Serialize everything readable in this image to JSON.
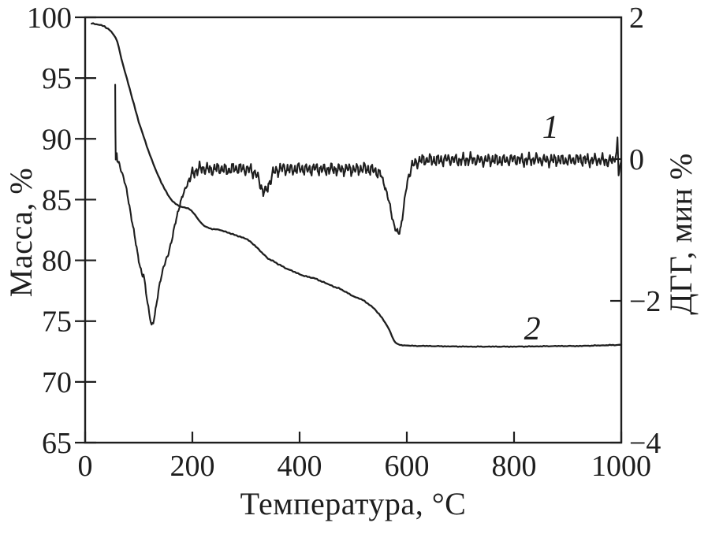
{
  "chart_data": {
    "type": "line",
    "line_color": "#1e1e1e",
    "background_color": "#ffffff",
    "grid": false,
    "x_axis": {
      "label": "Температура, °C",
      "min": 0,
      "max": 1000,
      "ticks": [
        0,
        200,
        400,
        600,
        800,
        1000
      ]
    },
    "y_axis_left": {
      "label": "Масса, %",
      "min": 65,
      "max": 100,
      "ticks": [
        100,
        95,
        90,
        85,
        80,
        75,
        70,
        65
      ]
    },
    "y_axis_right": {
      "label": "ДГГ, мин %",
      "min": -4,
      "max": 2,
      "ticks": [
        2,
        0,
        -2,
        -4
      ]
    },
    "series": [
      {
        "id": "tg-curve",
        "name": "2",
        "axis": "left",
        "description": "Mass loss (TG) curve, %",
        "width": 2.3,
        "noise": {
          "step": 3,
          "segments": [
            [
              12,
              560,
              0.05
            ],
            [
              560,
              1000,
              0.035
            ]
          ]
        },
        "anchors": [
          [
            12,
            99.5
          ],
          [
            24,
            99.42
          ],
          [
            36,
            99.25
          ],
          [
            46,
            98.95
          ],
          [
            54,
            98.55
          ],
          [
            60,
            98.0
          ],
          [
            65,
            97.1
          ],
          [
            70,
            96.2
          ],
          [
            74,
            95.55
          ],
          [
            78,
            94.95
          ],
          [
            83,
            94.15
          ],
          [
            88,
            93.3
          ],
          [
            94,
            92.35
          ],
          [
            100,
            91.4
          ],
          [
            106,
            90.6
          ],
          [
            112,
            89.8
          ],
          [
            118,
            89.0
          ],
          [
            124,
            88.3
          ],
          [
            130,
            87.65
          ],
          [
            136,
            87.0
          ],
          [
            142,
            86.4
          ],
          [
            148,
            85.9
          ],
          [
            154,
            85.4
          ],
          [
            160,
            85.05
          ],
          [
            166,
            84.75
          ],
          [
            172,
            84.55
          ],
          [
            178,
            84.42
          ],
          [
            185,
            84.35
          ],
          [
            192,
            84.28
          ],
          [
            198,
            84.1
          ],
          [
            205,
            83.75
          ],
          [
            212,
            83.3
          ],
          [
            219,
            82.95
          ],
          [
            226,
            82.75
          ],
          [
            234,
            82.62
          ],
          [
            243,
            82.55
          ],
          [
            252,
            82.5
          ],
          [
            262,
            82.35
          ],
          [
            272,
            82.2
          ],
          [
            282,
            82.05
          ],
          [
            292,
            81.9
          ],
          [
            300,
            81.8
          ],
          [
            308,
            81.55
          ],
          [
            316,
            81.25
          ],
          [
            324,
            80.9
          ],
          [
            332,
            80.55
          ],
          [
            341,
            80.15
          ],
          [
            350,
            79.95
          ],
          [
            360,
            79.7
          ],
          [
            370,
            79.45
          ],
          [
            385,
            79.15
          ],
          [
            400,
            78.85
          ],
          [
            415,
            78.65
          ],
          [
            429,
            78.5
          ],
          [
            445,
            78.2
          ],
          [
            460,
            77.9
          ],
          [
            473,
            77.7
          ],
          [
            490,
            77.3
          ],
          [
            505,
            76.95
          ],
          [
            518,
            76.75
          ],
          [
            530,
            76.35
          ],
          [
            540,
            76.0
          ],
          [
            548,
            75.6
          ],
          [
            554,
            75.25
          ],
          [
            560,
            74.85
          ],
          [
            567,
            74.3
          ],
          [
            572,
            73.8
          ],
          [
            576,
            73.4
          ],
          [
            581,
            73.15
          ],
          [
            587,
            73.05
          ],
          [
            595,
            73.0
          ],
          [
            610,
            72.97
          ],
          [
            640,
            72.95
          ],
          [
            680,
            72.92
          ],
          [
            720,
            72.9
          ],
          [
            760,
            72.9
          ],
          [
            800,
            72.9
          ],
          [
            840,
            72.92
          ],
          [
            880,
            72.95
          ],
          [
            920,
            72.95
          ],
          [
            960,
            73.0
          ],
          [
            1000,
            73.05
          ]
        ]
      },
      {
        "id": "dtg-curve",
        "name": "1",
        "axis": "right",
        "description": "Derivative (DTG) curve, мин %",
        "width": 2.1,
        "noise": {
          "step": 1.3,
          "segments": [
            [
              57,
              195,
              0.035
            ],
            [
              195,
              550,
              0.1
            ],
            [
              550,
              605,
              0.05
            ],
            [
              605,
              988,
              0.1
            ],
            [
              988,
              1000,
              0.02
            ]
          ]
        },
        "anchors": [
          [
            56,
            1.05
          ],
          [
            56.5,
            0.4
          ],
          [
            57,
            -0.02
          ],
          [
            58,
            0.0
          ],
          [
            59,
            0.1
          ],
          [
            60,
            -0.03
          ],
          [
            62,
            -0.06
          ],
          [
            64,
            -0.08
          ],
          [
            68,
            -0.17
          ],
          [
            72,
            -0.27
          ],
          [
            76,
            -0.4
          ],
          [
            80,
            -0.55
          ],
          [
            84,
            -0.72
          ],
          [
            88,
            -0.9
          ],
          [
            92,
            -1.08
          ],
          [
            96,
            -1.25
          ],
          [
            100,
            -1.42
          ],
          [
            104,
            -1.57
          ],
          [
            107,
            -1.66
          ],
          [
            109,
            -1.63
          ],
          [
            112,
            -1.78
          ],
          [
            115,
            -1.95
          ],
          [
            118,
            -2.1
          ],
          [
            121,
            -2.25
          ],
          [
            124,
            -2.36
          ],
          [
            127,
            -2.3
          ],
          [
            130,
            -2.18
          ],
          [
            134,
            -2.0
          ],
          [
            138,
            -1.82
          ],
          [
            142,
            -1.65
          ],
          [
            146,
            -1.52
          ],
          [
            150,
            -1.44
          ],
          [
            154,
            -1.38
          ],
          [
            158,
            -1.25
          ],
          [
            162,
            -1.12
          ],
          [
            166,
            -0.98
          ],
          [
            170,
            -0.85
          ],
          [
            174,
            -0.72
          ],
          [
            178,
            -0.6
          ],
          [
            183,
            -0.5
          ],
          [
            188,
            -0.4
          ],
          [
            193,
            -0.3
          ],
          [
            199,
            -0.22
          ],
          [
            205,
            -0.17
          ],
          [
            212,
            -0.14
          ],
          [
            220,
            -0.13
          ],
          [
            235,
            -0.15
          ],
          [
            250,
            -0.13
          ],
          [
            265,
            -0.16
          ],
          [
            280,
            -0.13
          ],
          [
            295,
            -0.14
          ],
          [
            308,
            -0.15
          ],
          [
            318,
            -0.2
          ],
          [
            325,
            -0.32
          ],
          [
            331,
            -0.44
          ],
          [
            337,
            -0.47
          ],
          [
            343,
            -0.35
          ],
          [
            349,
            -0.22
          ],
          [
            356,
            -0.16
          ],
          [
            370,
            -0.13
          ],
          [
            385,
            -0.15
          ],
          [
            400,
            -0.13
          ],
          [
            415,
            -0.15
          ],
          [
            430,
            -0.13
          ],
          [
            445,
            -0.15
          ],
          [
            460,
            -0.14
          ],
          [
            475,
            -0.15
          ],
          [
            490,
            -0.14
          ],
          [
            505,
            -0.15
          ],
          [
            520,
            -0.13
          ],
          [
            533,
            -0.15
          ],
          [
            543,
            -0.17
          ],
          [
            551,
            -0.22
          ],
          [
            558,
            -0.35
          ],
          [
            564,
            -0.52
          ],
          [
            570,
            -0.72
          ],
          [
            576,
            -0.92
          ],
          [
            581,
            -1.03
          ],
          [
            585,
            -1.05
          ],
          [
            589,
            -0.95
          ],
          [
            593,
            -0.75
          ],
          [
            597,
            -0.52
          ],
          [
            601,
            -0.32
          ],
          [
            605,
            -0.18
          ],
          [
            610,
            -0.1
          ],
          [
            617,
            -0.05
          ],
          [
            625,
            -0.02
          ],
          [
            640,
            -0.01
          ],
          [
            660,
            -0.02
          ],
          [
            680,
            0.0
          ],
          [
            700,
            -0.02
          ],
          [
            720,
            0.0
          ],
          [
            740,
            -0.02
          ],
          [
            760,
            -0.01
          ],
          [
            780,
            -0.02
          ],
          [
            800,
            0.0
          ],
          [
            820,
            -0.02
          ],
          [
            840,
            0.0
          ],
          [
            860,
            -0.02
          ],
          [
            880,
            -0.01
          ],
          [
            900,
            -0.02
          ],
          [
            920,
            0.0
          ],
          [
            940,
            -0.02
          ],
          [
            960,
            -0.01
          ],
          [
            975,
            -0.03
          ],
          [
            988,
            -0.02
          ],
          [
            991,
            0.1
          ],
          [
            993,
            0.3
          ],
          [
            995,
            -0.23
          ],
          [
            997,
            -0.12
          ],
          [
            1000,
            -0.03
          ]
        ]
      }
    ],
    "curve_labels": [
      {
        "text": "1",
        "axis": "right",
        "t": 868,
        "v": 0.3
      },
      {
        "text": "2",
        "axis": "left",
        "t": 834,
        "v": 73.5
      }
    ]
  }
}
